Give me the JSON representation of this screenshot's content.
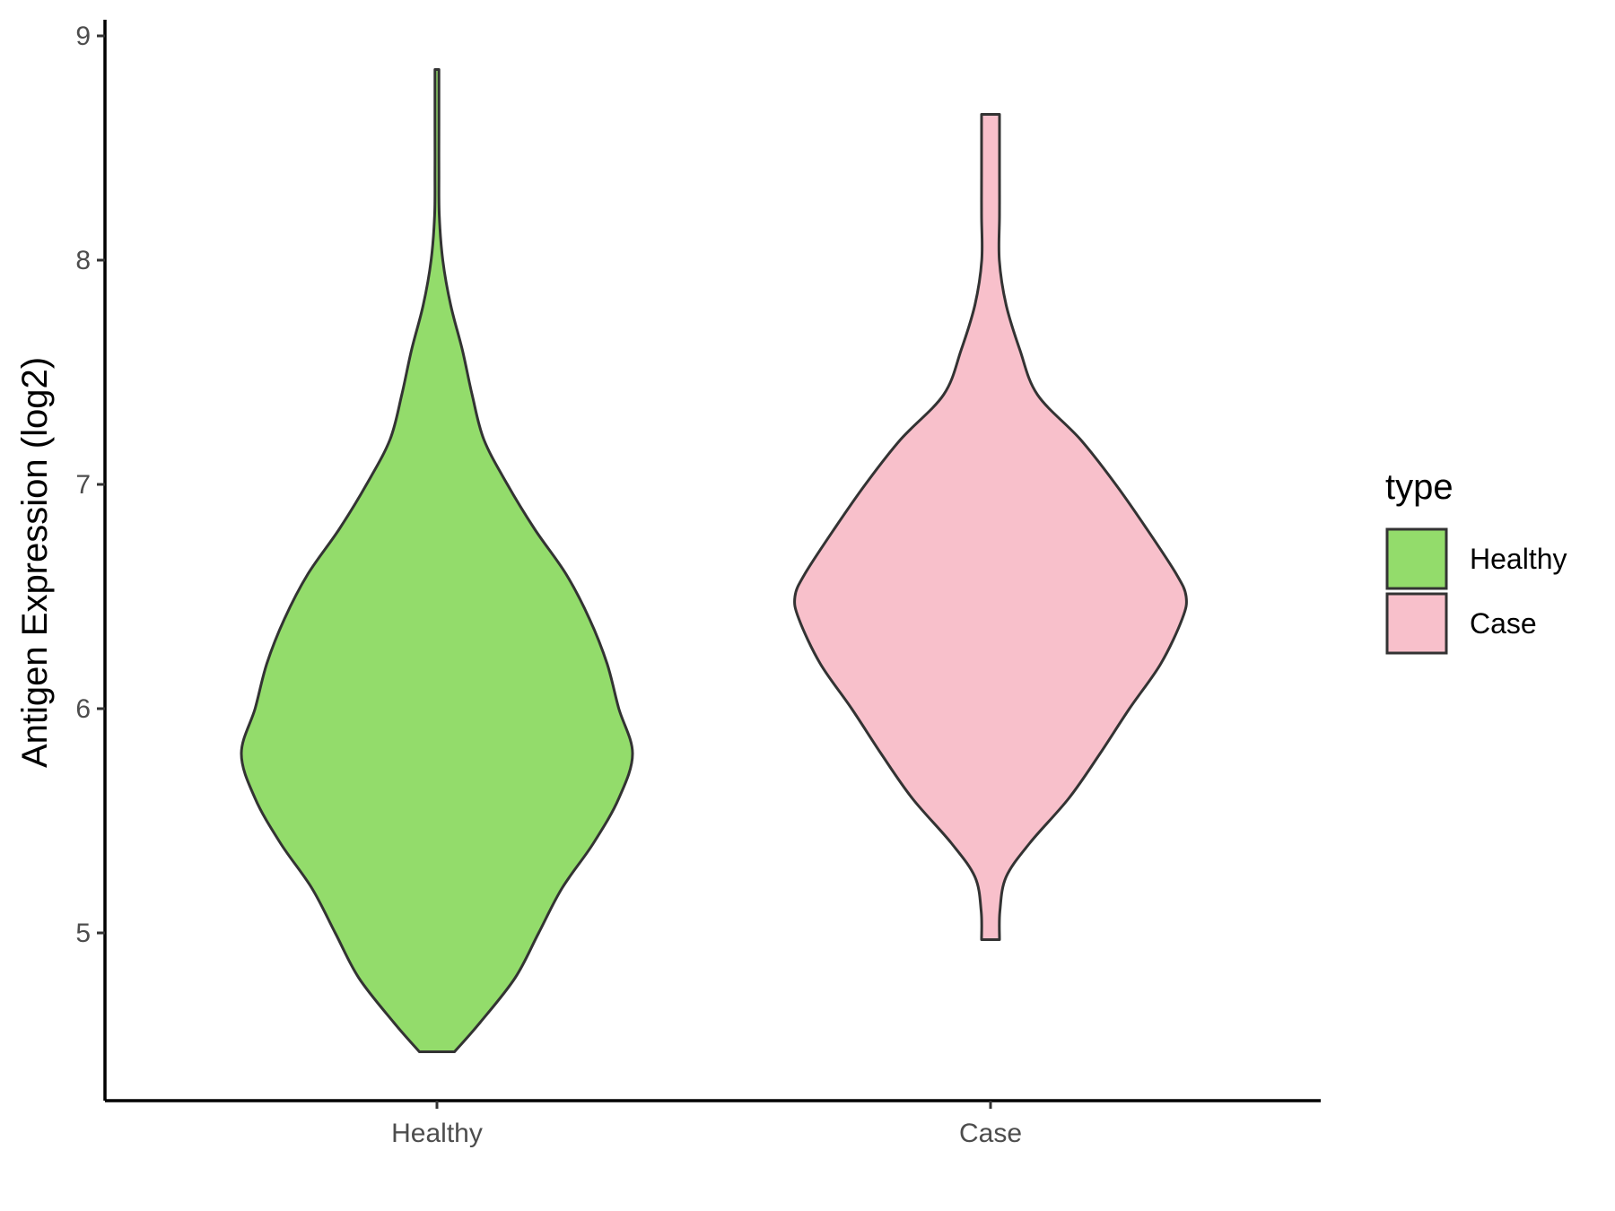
{
  "chart_data": {
    "type": "violin",
    "title": "",
    "xlabel": "",
    "ylabel": "Antigen Expression (log2)",
    "ylim": [
      4.3,
      9.05
    ],
    "yticks": [
      5,
      6,
      7,
      8,
      9
    ],
    "categories": [
      "Healthy",
      "Case"
    ],
    "grid": false,
    "legend": {
      "title": "type",
      "position": "right",
      "entries": [
        {
          "label": "Healthy",
          "color": "#93dc6b"
        },
        {
          "label": "Case",
          "color": "#f8c0cb"
        }
      ]
    },
    "series": [
      {
        "name": "Healthy",
        "color": "#93dc6b",
        "min": 4.47,
        "max": 8.85,
        "density_profile": [
          [
            4.47,
            0.09
          ],
          [
            4.6,
            0.22
          ],
          [
            4.8,
            0.4
          ],
          [
            5.0,
            0.52
          ],
          [
            5.2,
            0.64
          ],
          [
            5.4,
            0.8
          ],
          [
            5.6,
            0.93
          ],
          [
            5.8,
            1.0
          ],
          [
            6.0,
            0.93
          ],
          [
            6.2,
            0.87
          ],
          [
            6.4,
            0.78
          ],
          [
            6.6,
            0.66
          ],
          [
            6.8,
            0.5
          ],
          [
            7.0,
            0.36
          ],
          [
            7.2,
            0.24
          ],
          [
            7.4,
            0.18
          ],
          [
            7.6,
            0.13
          ],
          [
            7.8,
            0.07
          ],
          [
            8.0,
            0.03
          ],
          [
            8.2,
            0.012
          ],
          [
            8.4,
            0.01
          ],
          [
            8.6,
            0.01
          ],
          [
            8.85,
            0.01
          ]
        ]
      },
      {
        "name": "Case",
        "color": "#f8c0cb",
        "min": 4.97,
        "max": 8.65,
        "density_profile": [
          [
            4.97,
            0.046
          ],
          [
            5.1,
            0.048
          ],
          [
            5.25,
            0.08
          ],
          [
            5.4,
            0.2
          ],
          [
            5.6,
            0.4
          ],
          [
            5.8,
            0.56
          ],
          [
            6.0,
            0.71
          ],
          [
            6.2,
            0.87
          ],
          [
            6.4,
            0.98
          ],
          [
            6.5,
            1.0
          ],
          [
            6.6,
            0.95
          ],
          [
            6.8,
            0.8
          ],
          [
            7.0,
            0.64
          ],
          [
            7.2,
            0.46
          ],
          [
            7.4,
            0.24
          ],
          [
            7.6,
            0.15
          ],
          [
            7.8,
            0.08
          ],
          [
            8.0,
            0.045
          ],
          [
            8.2,
            0.046
          ],
          [
            8.4,
            0.046
          ],
          [
            8.65,
            0.046
          ]
        ]
      }
    ]
  }
}
